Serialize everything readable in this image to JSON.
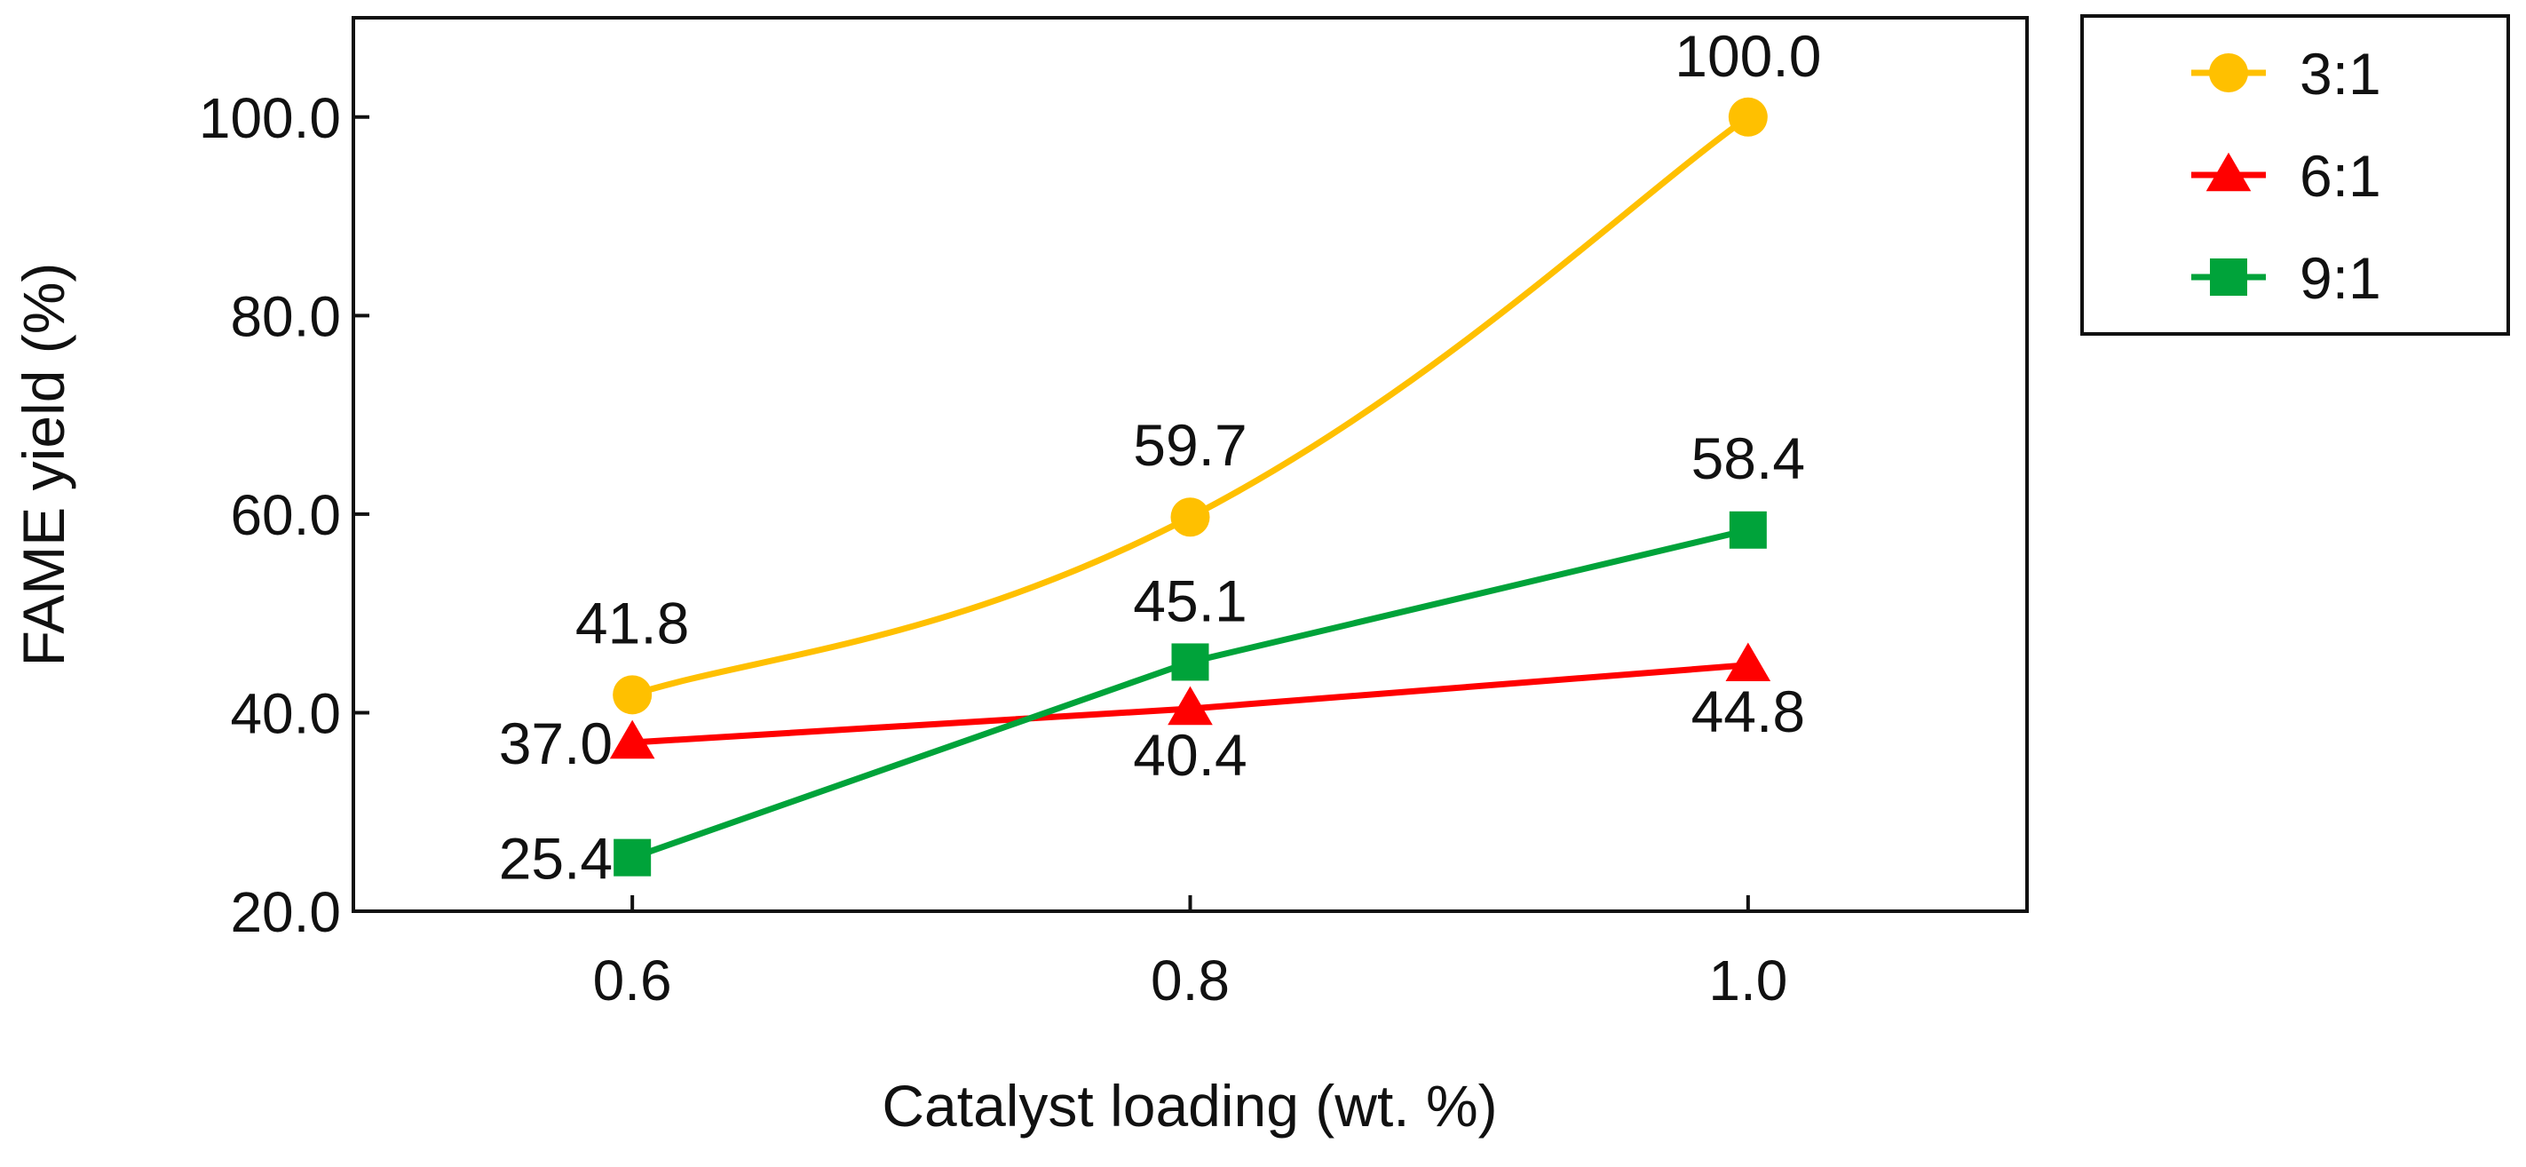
{
  "chart_data": {
    "type": "line",
    "title": "",
    "xlabel": "Catalyst loading (wt. %)",
    "ylabel": "FAME yield (%)",
    "x": [
      0.6,
      0.8,
      1.0
    ],
    "x_tick_labels": [
      "0.6",
      "0.8",
      "1.0"
    ],
    "xlim": [
      0.5,
      1.1
    ],
    "ylim": [
      20,
      110
    ],
    "y_ticks": [
      20,
      40,
      60,
      80,
      100
    ],
    "y_tick_labels": [
      "20.0",
      "40.0",
      "60.0",
      "80.0",
      "100.0"
    ],
    "grid": false,
    "legend_position": "right-top-outside",
    "series": [
      {
        "name": "3:1",
        "marker": "circle",
        "color": "#FFC000",
        "smooth": true,
        "values": [
          41.8,
          59.7,
          100.0
        ],
        "labels": [
          "41.8",
          "59.7",
          "100.0"
        ]
      },
      {
        "name": "6:1",
        "marker": "triangle",
        "color": "#FF0000",
        "smooth": false,
        "values": [
          37.0,
          40.4,
          44.8
        ],
        "labels": [
          "37.0",
          "40.4",
          "44.8"
        ]
      },
      {
        "name": "9:1",
        "marker": "square",
        "color": "#00A33A",
        "smooth": false,
        "values": [
          25.4,
          45.1,
          58.4
        ],
        "labels": [
          "25.4",
          "45.1",
          "58.4"
        ]
      }
    ]
  }
}
